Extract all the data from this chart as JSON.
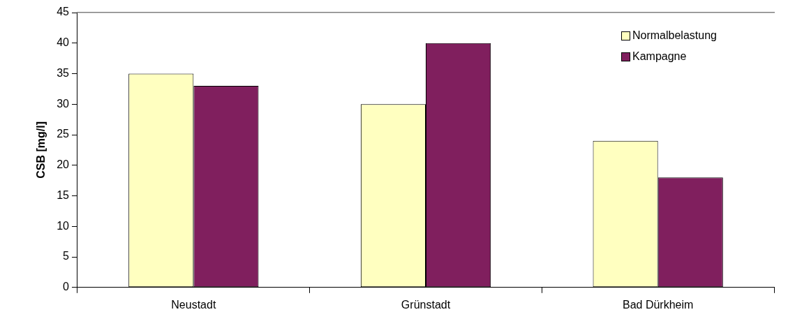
{
  "chart_data": {
    "type": "bar",
    "ylabel": "CSB [mg/l]",
    "categories": [
      "Neustadt",
      "Grünstadt",
      "Bad Dürkheim"
    ],
    "series": [
      {
        "name": "Normalbelastung",
        "color": "#ffffc0",
        "values": [
          35,
          30,
          24
        ]
      },
      {
        "name": "Kampagne",
        "color": "#801f5e",
        "values": [
          33,
          40,
          18
        ]
      }
    ],
    "ylim": [
      0,
      45
    ],
    "yticks": [
      0,
      5,
      10,
      15,
      20,
      25,
      30,
      35,
      40,
      45
    ],
    "legend": "top right"
  }
}
